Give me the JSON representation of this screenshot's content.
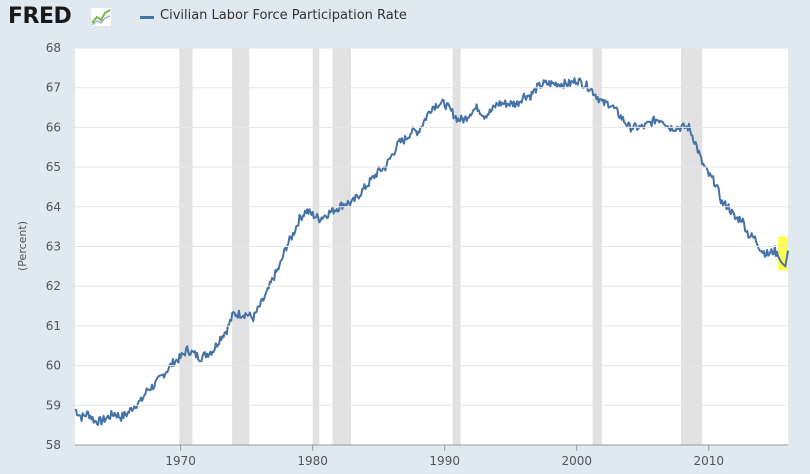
{
  "app": {
    "logo_text": "FRED",
    "logo_icon": "chart-line-icon"
  },
  "chart_data": {
    "type": "line",
    "title": "Civilian Labor Force Participation Rate",
    "ylabel": "(Percent)",
    "xlabel": "",
    "xlim": [
      1962.0,
      2016.0
    ],
    "ylim": [
      58,
      68
    ],
    "y_ticks": [
      58,
      59,
      60,
      61,
      62,
      63,
      64,
      65,
      66,
      67,
      68
    ],
    "x_ticks": [
      1970,
      1980,
      1990,
      2000,
      2010
    ],
    "legend": "top-left",
    "recessions": [
      {
        "start": 1969.9,
        "end": 1970.9
      },
      {
        "start": 1973.9,
        "end": 1975.2
      },
      {
        "start": 1980.0,
        "end": 1980.5
      },
      {
        "start": 1981.5,
        "end": 1982.9
      },
      {
        "start": 1990.6,
        "end": 1991.2
      },
      {
        "start": 2001.2,
        "end": 2001.9
      },
      {
        "start": 2007.9,
        "end": 2009.5
      }
    ],
    "highlight": {
      "x_start": 2015.25,
      "x_end": 2016.0,
      "y_start": 62.4,
      "y_end": 63.25,
      "color": "#ffff33"
    },
    "series": [
      {
        "name": "Civilian Labor Force Participation Rate",
        "color": "#4572a7",
        "x": [
          1962.0,
          1962.5,
          1963.0,
          1963.5,
          1964.0,
          1964.5,
          1965.0,
          1965.5,
          1966.0,
          1966.5,
          1967.0,
          1967.5,
          1968.0,
          1968.5,
          1969.0,
          1969.5,
          1970.0,
          1970.5,
          1971.0,
          1971.5,
          1972.0,
          1972.5,
          1973.0,
          1973.5,
          1974.0,
          1974.5,
          1975.0,
          1975.5,
          1976.0,
          1976.5,
          1977.0,
          1977.5,
          1978.0,
          1978.5,
          1979.0,
          1979.5,
          1980.0,
          1980.5,
          1981.0,
          1981.5,
          1982.0,
          1982.5,
          1983.0,
          1983.5,
          1984.0,
          1984.5,
          1985.0,
          1985.5,
          1986.0,
          1986.5,
          1987.0,
          1987.5,
          1988.0,
          1988.5,
          1989.0,
          1989.5,
          1990.0,
          1990.5,
          1991.0,
          1991.5,
          1992.0,
          1992.5,
          1993.0,
          1993.5,
          1994.0,
          1994.5,
          1995.0,
          1995.5,
          1996.0,
          1996.5,
          1997.0,
          1997.5,
          1998.0,
          1998.5,
          1999.0,
          1999.5,
          2000.0,
          2000.5,
          2001.0,
          2001.5,
          2002.0,
          2002.5,
          2003.0,
          2003.5,
          2004.0,
          2004.5,
          2005.0,
          2005.5,
          2006.0,
          2006.5,
          2007.0,
          2007.5,
          2008.0,
          2008.5,
          2009.0,
          2009.5,
          2010.0,
          2010.5,
          2011.0,
          2011.5,
          2012.0,
          2012.5,
          2013.0,
          2013.5,
          2014.0,
          2014.5,
          2015.0,
          2015.5,
          2015.8,
          2016.0
        ],
        "values": [
          58.9,
          58.7,
          58.8,
          58.6,
          58.6,
          58.7,
          58.8,
          58.7,
          58.8,
          59.0,
          59.1,
          59.4,
          59.5,
          59.7,
          59.9,
          60.1,
          60.2,
          60.4,
          60.3,
          60.2,
          60.3,
          60.4,
          60.7,
          60.9,
          61.3,
          61.3,
          61.3,
          61.2,
          61.5,
          61.8,
          62.2,
          62.5,
          63.0,
          63.3,
          63.7,
          63.9,
          63.8,
          63.7,
          63.8,
          63.9,
          64.0,
          64.1,
          64.1,
          64.3,
          64.5,
          64.7,
          64.9,
          65.0,
          65.3,
          65.6,
          65.7,
          65.9,
          65.9,
          66.2,
          66.5,
          66.6,
          66.6,
          66.4,
          66.2,
          66.2,
          66.4,
          66.5,
          66.3,
          66.4,
          66.6,
          66.6,
          66.6,
          66.6,
          66.8,
          66.8,
          67.0,
          67.1,
          67.1,
          67.1,
          67.1,
          67.1,
          67.2,
          67.1,
          67.0,
          66.8,
          66.6,
          66.6,
          66.4,
          66.2,
          66.0,
          66.0,
          66.0,
          66.1,
          66.2,
          66.2,
          66.0,
          66.0,
          66.0,
          66.0,
          65.6,
          65.1,
          64.8,
          64.6,
          64.1,
          64.0,
          63.7,
          63.7,
          63.3,
          63.2,
          62.9,
          62.8,
          62.9,
          62.6,
          62.5,
          62.9
        ]
      }
    ]
  }
}
